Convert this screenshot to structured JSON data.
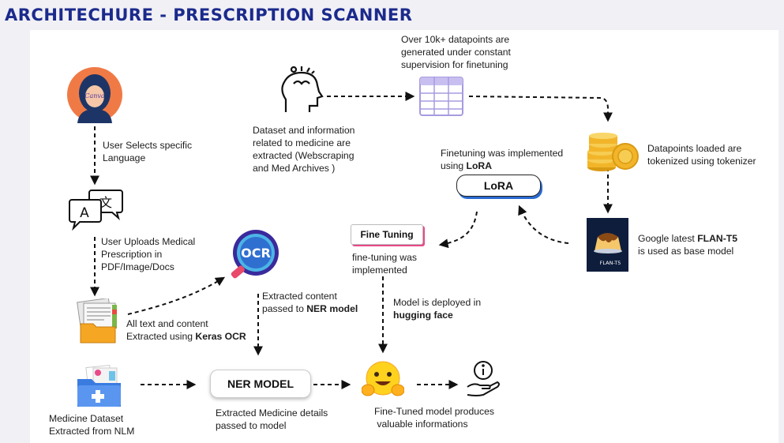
{
  "title": "ARCHITECHURE - PRESCRIPTION SCANNER",
  "avatar_text": "Canva",
  "labels": {
    "user_selects": "User Selects specific\nLanguage",
    "user_uploads": "User Uploads Medical\nPrescription in\nPDF/Image/Docs",
    "all_text_1": "All text and content",
    "all_text_2": "Extracted using ",
    "all_text_2_bold": "Keras OCR",
    "medicine_dataset": "Medicine Dataset\nExtracted from NLM",
    "extracted_content_1": "Extracted content",
    "extracted_content_2": "passed to ",
    "extracted_content_2_bold": "NER model",
    "extracted_medicine": "Extracted Medicine details\npassed to model",
    "dataset_info": "Dataset and information\nrelated to medicine are\nextracted (Webscraping\nand Med Archives )",
    "datapoints_generated": "Over 10k+ datapoints are\ngenerated under constant\nsupervision for finetuning",
    "finetuning_impl_1": "Finetuning was implemented",
    "finetuning_impl_2": "using ",
    "finetuning_impl_2_bold": "LoRA",
    "tokenized": "Datapoints loaded are\ntokenized using tokenizer",
    "google_1": "Google latest ",
    "google_1_bold": "FLAN-T5",
    "google_2": "is used as base model",
    "finetuning_was": "fine-tuning was\nimplemented",
    "deployed_1": "Model is deployed in",
    "deployed_2_bold": "hugging face",
    "fine_tuned_model": "Fine-Tuned model produces\n valuable informations"
  },
  "boxes": {
    "lora": "LoRA",
    "fine_tuning": "Fine Tuning",
    "ner_model": "NER MODEL",
    "ocr": "OCR",
    "flan_badge": "FLAN-T5"
  },
  "icons": [
    "avatar-icon",
    "translate-icon",
    "documents-icon",
    "medicine-folder-icon",
    "ocr-icon",
    "brain-ideas-icon",
    "table-icon",
    "coins-icon",
    "flan-t5-icon",
    "hugging-face-icon",
    "info-hand-icon"
  ],
  "colors": {
    "title": "#1b2a8c",
    "background": "#f1f0f5",
    "canvas": "#ffffff"
  }
}
